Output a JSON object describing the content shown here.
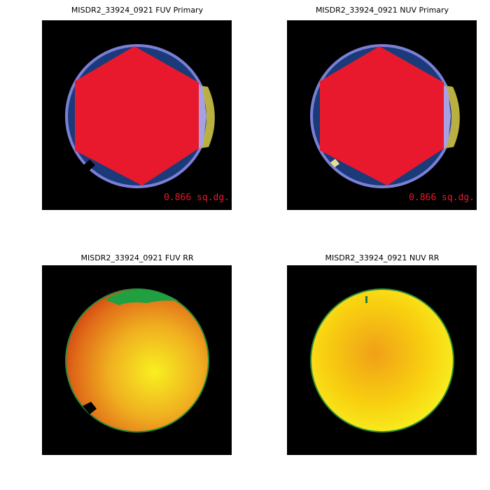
{
  "panels": [
    {
      "title": "MISDR2_33924_0921 FUV Primary",
      "area": "0.866 sq.dg."
    },
    {
      "title": "MISDR2_33924_0921 NUV Primary",
      "area": "0.866 sq.dg."
    },
    {
      "title": "MISDR2_33924_0921 FUV RR"
    },
    {
      "title": "MISDR2_33924_0921 NUV RR"
    }
  ]
}
